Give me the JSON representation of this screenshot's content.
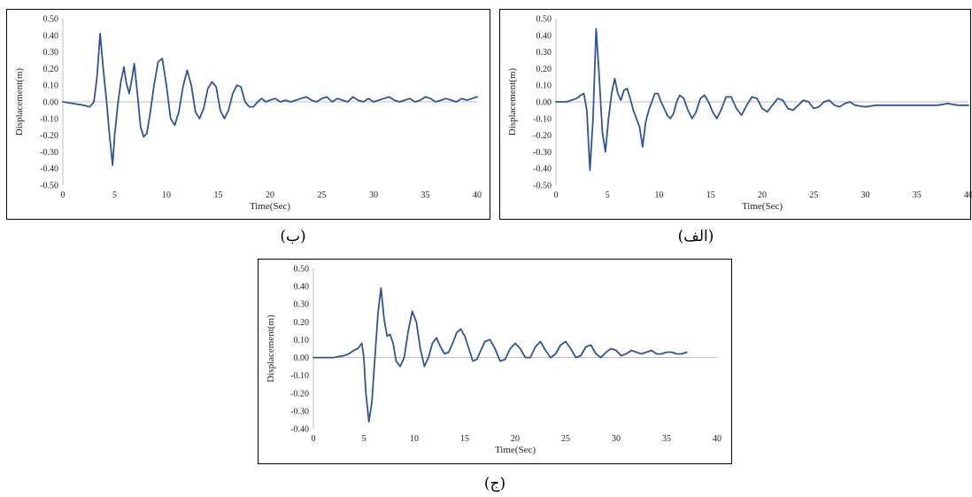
{
  "panels": [
    {
      "caption": "(ب)",
      "chart_data": {
        "type": "line",
        "xlabel": "Time(Sec)",
        "ylabel": "Displacement(m)",
        "xlim": [
          0,
          40
        ],
        "ylim": [
          -0.5,
          0.5
        ],
        "xticks": [
          "0",
          "5",
          "10",
          "15",
          "20",
          "25",
          "30",
          "35",
          "40"
        ],
        "yticks": [
          "0.50",
          "0.40",
          "0.30",
          "0.20",
          "0.10",
          "0.00",
          "-0.10",
          "-0.20",
          "-0.30",
          "-0.40",
          "-0.50"
        ],
        "grid": false,
        "series": [
          {
            "color": "#2f5597",
            "x": [
              0,
              1,
              2,
              2.6,
              3,
              3.3,
              3.6,
              3.9,
              4.2,
              4.5,
              4.8,
              5.0,
              5.3,
              5.6,
              5.9,
              6.1,
              6.4,
              6.7,
              6.9,
              7.2,
              7.5,
              7.8,
              8.1,
              8.4,
              8.8,
              9.2,
              9.6,
              10.0,
              10.4,
              10.8,
              11.2,
              11.6,
              12.0,
              12.4,
              12.8,
              13.2,
              13.6,
              14.0,
              14.4,
              14.8,
              15.2,
              15.6,
              16.0,
              16.4,
              16.8,
              17.2,
              17.6,
              18.0,
              18.4,
              18.8,
              19.2,
              19.6,
              20.0,
              20.5,
              21,
              21.5,
              22,
              22.5,
              23,
              23.5,
              24,
              24.5,
              25,
              25.5,
              26,
              26.5,
              27,
              27.5,
              28,
              28.5,
              29,
              29.5,
              30,
              30.5,
              31,
              31.5,
              32,
              32.5,
              33,
              33.5,
              34,
              34.5,
              35,
              35.5,
              36,
              36.5,
              37,
              37.5,
              38,
              38.5,
              39,
              39.5,
              40
            ],
            "y": [
              0,
              -0.01,
              -0.02,
              -0.03,
              0.0,
              0.15,
              0.41,
              0.2,
              0.02,
              -0.2,
              -0.38,
              -0.2,
              -0.02,
              0.12,
              0.21,
              0.12,
              0.05,
              0.15,
              0.23,
              0.05,
              -0.15,
              -0.21,
              -0.19,
              -0.08,
              0.1,
              0.24,
              0.26,
              0.1,
              -0.1,
              -0.14,
              -0.06,
              0.09,
              0.19,
              0.1,
              -0.06,
              -0.1,
              -0.04,
              0.08,
              0.12,
              0.09,
              -0.05,
              -0.1,
              -0.05,
              0.05,
              0.1,
              0.09,
              0.0,
              -0.03,
              -0.03,
              0.0,
              0.02,
              0.0,
              0.01,
              0.02,
              0.0,
              0.01,
              0.0,
              0.01,
              0.02,
              0.03,
              0.01,
              0.0,
              0.02,
              0.03,
              0.0,
              0.02,
              0.01,
              0.0,
              0.03,
              0.01,
              0.0,
              0.02,
              0.0,
              0.01,
              0.02,
              0.03,
              0.01,
              0.0,
              0.01,
              0.02,
              0.0,
              0.01,
              0.03,
              0.02,
              0.0,
              0.01,
              0.02,
              0.01,
              0.0,
              0.02,
              0.01,
              0.02,
              0.03
            ]
          }
        ]
      }
    },
    {
      "caption": "(الف)",
      "chart_data": {
        "type": "line",
        "xlabel": "Time(Sec)",
        "ylabel": "Displacement(m)",
        "xlim": [
          0,
          40
        ],
        "ylim": [
          -0.5,
          0.5
        ],
        "xticks": [
          "0",
          "5",
          "10",
          "15",
          "20",
          "25",
          "30",
          "35",
          "40"
        ],
        "yticks": [
          "0.50",
          "0.40",
          "0.30",
          "0.20",
          "0.10",
          "0.00",
          "-0.10",
          "-0.20",
          "-0.30",
          "-0.40",
          "-0.50"
        ],
        "grid": false,
        "series": [
          {
            "color": "#2f5597",
            "x": [
              0,
              1,
              1.5,
              2,
              2.4,
              2.7,
              3.0,
              3.3,
              3.6,
              3.9,
              4.2,
              4.5,
              4.8,
              5.1,
              5.4,
              5.7,
              6.0,
              6.3,
              6.6,
              6.9,
              7.2,
              7.5,
              7.8,
              8.1,
              8.4,
              8.7,
              9.0,
              9.3,
              9.6,
              9.9,
              10.2,
              10.5,
              10.8,
              11.1,
              11.4,
              11.7,
              12.0,
              12.4,
              12.8,
              13.2,
              13.6,
              14.0,
              14.4,
              14.8,
              15.2,
              15.6,
              16.0,
              16.5,
              17.0,
              17.5,
              18.0,
              18.5,
              19.0,
              19.5,
              20.0,
              20.5,
              21.0,
              21.5,
              22.0,
              22.5,
              23.0,
              23.5,
              24.0,
              24.5,
              25.0,
              25.5,
              26.0,
              26.5,
              27.0,
              27.5,
              28.0,
              28.5,
              29.0,
              30,
              31,
              32,
              33,
              34,
              35,
              36,
              37,
              38,
              39,
              40
            ],
            "y": [
              0.0,
              0.0,
              0.01,
              0.02,
              0.04,
              0.05,
              -0.05,
              -0.41,
              -0.1,
              0.44,
              0.15,
              -0.18,
              -0.3,
              -0.1,
              0.05,
              0.14,
              0.05,
              0.01,
              0.07,
              0.08,
              0.02,
              -0.05,
              -0.1,
              -0.15,
              -0.27,
              -0.12,
              -0.05,
              0.0,
              0.05,
              0.05,
              0.0,
              -0.04,
              -0.08,
              -0.1,
              -0.07,
              0.0,
              0.04,
              0.02,
              -0.05,
              -0.1,
              -0.06,
              0.02,
              0.04,
              0.0,
              -0.06,
              -0.1,
              -0.05,
              0.03,
              0.03,
              -0.04,
              -0.08,
              -0.02,
              0.03,
              0.02,
              -0.04,
              -0.06,
              -0.02,
              0.02,
              0.01,
              -0.04,
              -0.05,
              -0.02,
              0.01,
              0.0,
              -0.04,
              -0.03,
              0.0,
              0.01,
              -0.02,
              -0.03,
              -0.01,
              0.0,
              -0.02,
              -0.03,
              -0.02,
              -0.02,
              -0.02,
              -0.02,
              -0.02,
              -0.02,
              -0.02,
              -0.01,
              -0.02,
              -0.02
            ]
          }
        ]
      }
    },
    {
      "caption": "(ج)",
      "chart_data": {
        "type": "line",
        "xlabel": "Time(Sec)",
        "ylabel": "Displacement(m)",
        "xlim": [
          0,
          40
        ],
        "ylim": [
          -0.4,
          0.5
        ],
        "xticks": [
          "0",
          "5",
          "10",
          "15",
          "20",
          "25",
          "30",
          "35",
          "40"
        ],
        "yticks": [
          "0.50",
          "0.40",
          "0.30",
          "0.20",
          "0.10",
          "0.00",
          "-0.10",
          "-0.20",
          "-0.30",
          "-0.40"
        ],
        "grid": false,
        "series": [
          {
            "color": "#2f5597",
            "x": [
              0,
              1,
              2,
              3,
              3.5,
              4.0,
              4.4,
              4.8,
              5.0,
              5.2,
              5.5,
              5.8,
              6.1,
              6.4,
              6.7,
              7.0,
              7.3,
              7.6,
              7.9,
              8.2,
              8.6,
              9.0,
              9.4,
              9.8,
              10.2,
              10.6,
              11.0,
              11.4,
              11.8,
              12.2,
              12.6,
              13.0,
              13.4,
              13.8,
              14.2,
              14.6,
              15.0,
              15.4,
              15.8,
              16.2,
              16.6,
              17.0,
              17.5,
              18.0,
              18.5,
              19.0,
              19.5,
              20.0,
              20.5,
              21.0,
              21.5,
              22.0,
              22.5,
              23.0,
              23.5,
              24.0,
              24.5,
              25.0,
              25.5,
              26.0,
              26.5,
              27.0,
              27.5,
              28.0,
              28.5,
              29.0,
              29.5,
              30.0,
              30.5,
              31.0,
              31.5,
              32.0,
              32.5,
              33.0,
              33.5,
              34.0,
              34.5,
              35.0,
              35.5,
              36.0,
              36.5,
              37.0
            ],
            "y": [
              0.0,
              0.0,
              0.0,
              0.01,
              0.02,
              0.04,
              0.05,
              0.08,
              0.0,
              -0.2,
              -0.36,
              -0.25,
              0.0,
              0.25,
              0.39,
              0.22,
              0.12,
              0.13,
              0.08,
              -0.02,
              -0.05,
              0.0,
              0.15,
              0.26,
              0.2,
              0.05,
              -0.05,
              0.0,
              0.08,
              0.11,
              0.06,
              0.02,
              0.03,
              0.08,
              0.14,
              0.16,
              0.12,
              0.05,
              -0.02,
              -0.01,
              0.04,
              0.09,
              0.1,
              0.05,
              -0.02,
              -0.01,
              0.05,
              0.08,
              0.05,
              0.0,
              0.0,
              0.06,
              0.09,
              0.04,
              0.0,
              0.02,
              0.07,
              0.09,
              0.05,
              0.0,
              0.01,
              0.06,
              0.07,
              0.02,
              0.0,
              0.03,
              0.05,
              0.04,
              0.01,
              0.02,
              0.04,
              0.03,
              0.02,
              0.03,
              0.04,
              0.02,
              0.02,
              0.03,
              0.03,
              0.02,
              0.02,
              0.03
            ]
          }
        ]
      }
    }
  ]
}
